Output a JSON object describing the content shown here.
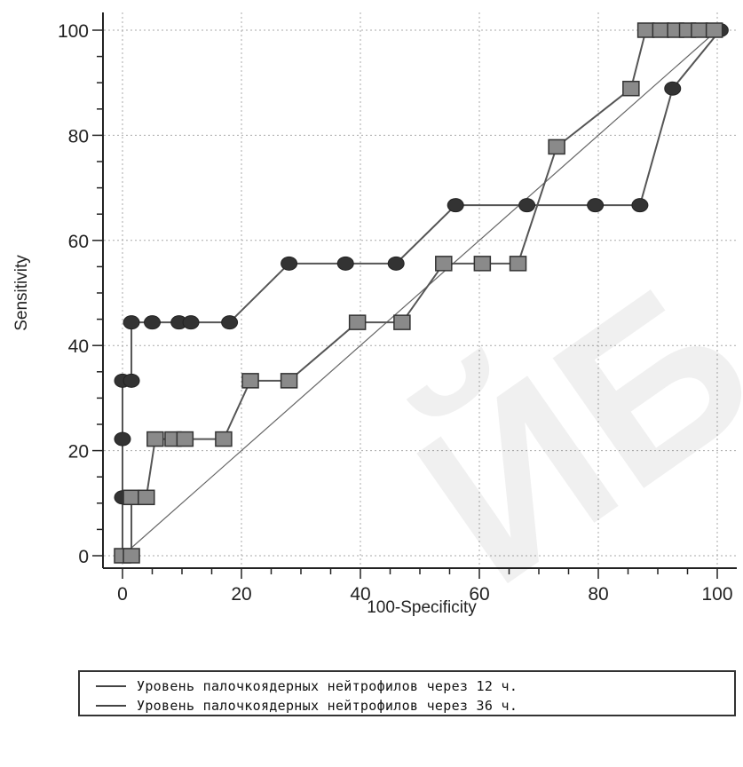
{
  "chart_data": {
    "type": "line",
    "xlabel": "100-Specificity",
    "ylabel": "Sensitivity",
    "xlim": [
      0,
      100
    ],
    "ylim": [
      0,
      100
    ],
    "xticks": [
      0,
      20,
      40,
      60,
      80,
      100
    ],
    "yticks": [
      0,
      20,
      40,
      60,
      80,
      100
    ],
    "grid": true,
    "diagonal_reference": [
      [
        0,
        0
      ],
      [
        100,
        100
      ]
    ],
    "legend_placement": "bottom",
    "series": [
      {
        "name": "Уровень палочкоядерных нейтрофилов через 12 ч.",
        "marker": "circle",
        "points": [
          [
            0,
            0
          ],
          [
            0,
            11.1
          ],
          [
            0,
            22.2
          ],
          [
            0,
            33.3
          ],
          [
            1.5,
            33.3
          ],
          [
            1.5,
            44.4
          ],
          [
            5,
            44.4
          ],
          [
            9.5,
            44.4
          ],
          [
            11.5,
            44.4
          ],
          [
            18,
            44.4
          ],
          [
            28,
            55.6
          ],
          [
            37.5,
            55.6
          ],
          [
            46,
            55.6
          ],
          [
            56,
            66.7
          ],
          [
            68,
            66.7
          ],
          [
            79.5,
            66.7
          ],
          [
            87,
            66.7
          ],
          [
            92.5,
            88.9
          ],
          [
            100.5,
            100
          ]
        ]
      },
      {
        "name": "Уровень палочкоядерных нейтрофилов через 36 ч.",
        "marker": "square",
        "points": [
          [
            0,
            0
          ],
          [
            1.5,
            0
          ],
          [
            1.5,
            11.1
          ],
          [
            4,
            11.1
          ],
          [
            5.5,
            22.2
          ],
          [
            8.5,
            22.2
          ],
          [
            10.5,
            22.2
          ],
          [
            17,
            22.2
          ],
          [
            21.5,
            33.3
          ],
          [
            28,
            33.3
          ],
          [
            39.5,
            44.4
          ],
          [
            47,
            44.4
          ],
          [
            54,
            55.6
          ],
          [
            60.5,
            55.6
          ],
          [
            66.5,
            55.6
          ],
          [
            73,
            77.8
          ],
          [
            85.5,
            88.9
          ],
          [
            88,
            100
          ],
          [
            90.5,
            100
          ],
          [
            93,
            100
          ],
          [
            95,
            100
          ],
          [
            97,
            100
          ],
          [
            99.5,
            100
          ]
        ]
      }
    ]
  },
  "watermark": "ЙБ",
  "colors": {
    "line": "#555555",
    "marker_circle": "#333333",
    "marker_square": "#8a8a8a",
    "grid": "#aaaaaa"
  }
}
